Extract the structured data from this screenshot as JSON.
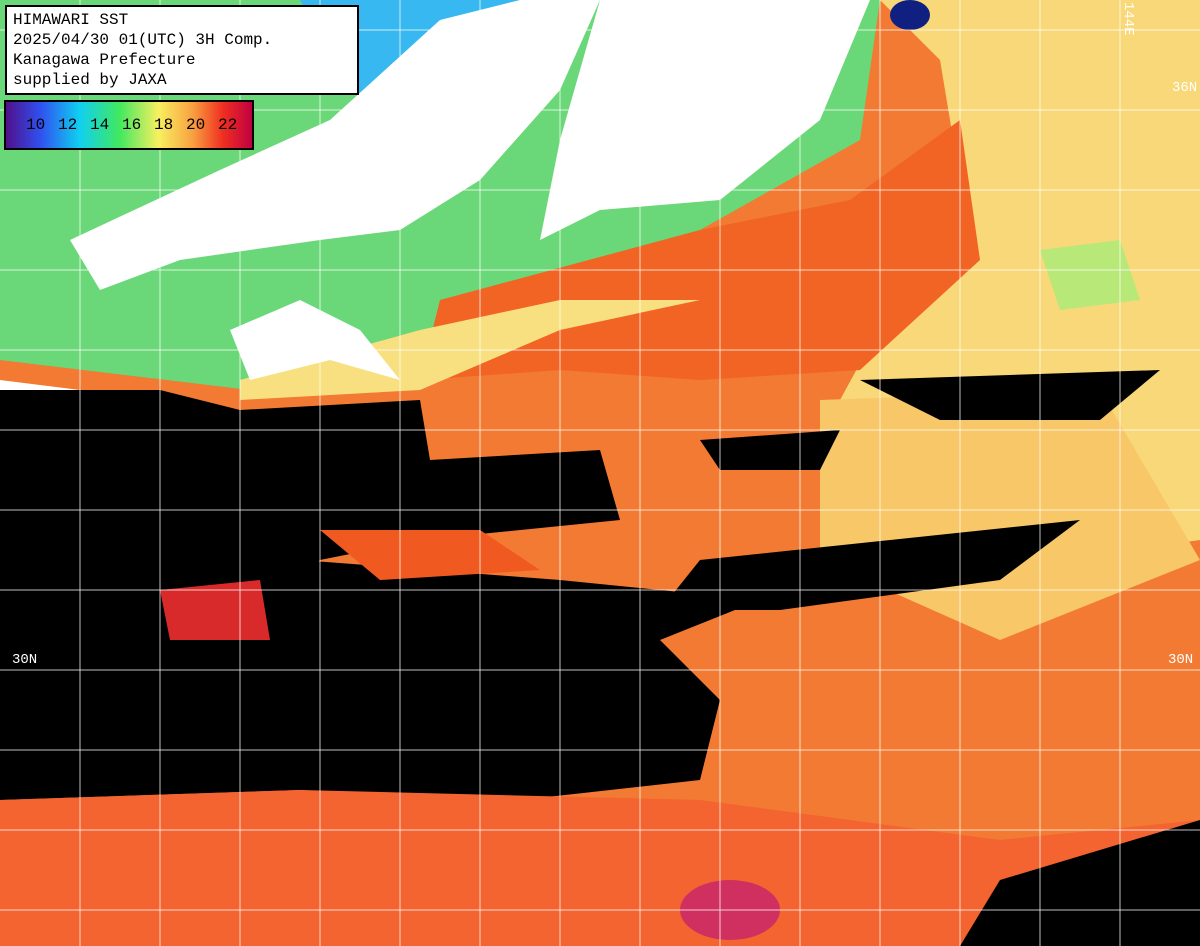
{
  "header": {
    "lines": [
      "HIMAWARI SST",
      "2025/04/30 01(UTC) 3H Comp.",
      "Kanagawa Prefecture",
      "supplied by JAXA"
    ]
  },
  "legend": {
    "labels": [
      "10",
      "12",
      "14",
      "16",
      "18",
      "20",
      "22"
    ]
  },
  "grid_labels": {
    "top_right": "144E",
    "right_upper": "36N",
    "left_lower": "30N",
    "right_lower": "30N"
  }
}
